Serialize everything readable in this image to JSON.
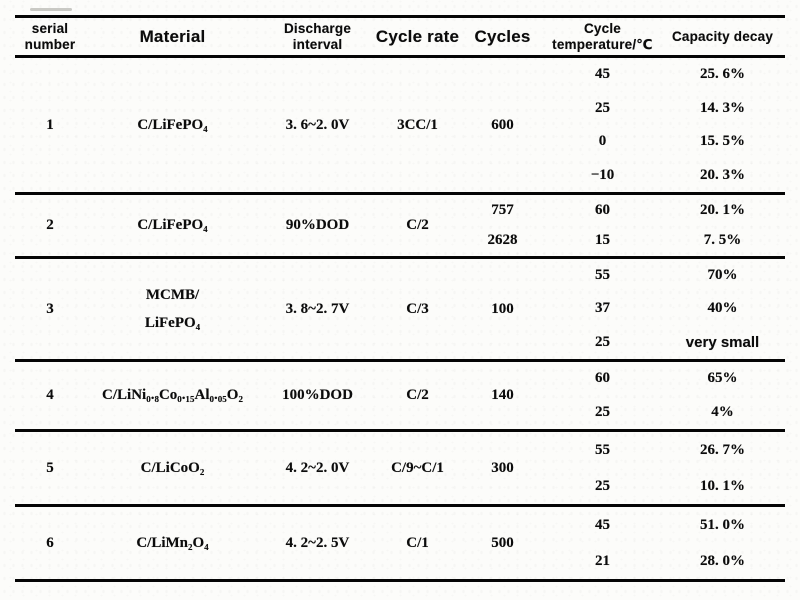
{
  "page": {
    "background": "#fcfcfa",
    "text_color": "#0c0c0c",
    "rule_color": "#050505"
  },
  "chart_data": {
    "type": "table",
    "title": "",
    "columns": [
      "serial number",
      "Material",
      "Discharge interval",
      "Cycle rate",
      "Cycles",
      "Cycle temperature/℃",
      "Capacity decay"
    ]
  },
  "table": {
    "headers": {
      "serial": "serial number",
      "material": "Material",
      "discharge": "Discharge interval",
      "rate": "Cycle rate",
      "cycles": "Cycles",
      "temperature": "Cycle temperature/℃",
      "decay": "Capacity decay"
    },
    "rows": [
      {
        "serial": "1",
        "material": "C/LiFePO₄",
        "discharge": "3. 6~2. 0V",
        "rate": "3CC/1",
        "cycles": [
          "600"
        ],
        "subs": [
          {
            "temp": "45",
            "decay": "25. 6%"
          },
          {
            "temp": "25",
            "decay": "14. 3%"
          },
          {
            "temp": "0",
            "decay": "15. 5%"
          },
          {
            "temp": "−10",
            "decay": "20. 3%"
          }
        ]
      },
      {
        "serial": "2",
        "material": "C/LiFePO₄",
        "discharge": "90%DOD",
        "rate": "C/2",
        "cycles": [
          "757",
          "2628"
        ],
        "subs": [
          {
            "temp": "60",
            "decay": "20. 1%"
          },
          {
            "temp": "15",
            "decay": "7. 5%"
          }
        ]
      },
      {
        "serial": "3",
        "material": "MCMB/\nLiFePO₄",
        "discharge": "3. 8~2. 7V",
        "rate": "C/3",
        "cycles": [
          "100"
        ],
        "subs": [
          {
            "temp": "55",
            "decay": "70%"
          },
          {
            "temp": "37",
            "decay": "40%"
          },
          {
            "temp": "25",
            "decay": "very small"
          }
        ]
      },
      {
        "serial": "4",
        "material": "C/LiNi₀.₈Co₀.₁₅Al₀.₀₅O₂",
        "discharge": "100%DOD",
        "rate": "C/2",
        "cycles": [
          "140"
        ],
        "subs": [
          {
            "temp": "60",
            "decay": "65%"
          },
          {
            "temp": "25",
            "decay": "4%"
          }
        ]
      },
      {
        "serial": "5",
        "material": "C/LiCoO₂",
        "discharge": "4. 2~2. 0V",
        "rate": "C/9~C/1",
        "cycles": [
          "300"
        ],
        "subs": [
          {
            "temp": "55",
            "decay": "26. 7%"
          },
          {
            "temp": "25",
            "decay": "10. 1%"
          }
        ]
      },
      {
        "serial": "6",
        "material": "C/LiMn₂O₄",
        "discharge": "4. 2~2. 5V",
        "rate": "C/1",
        "cycles": [
          "500"
        ],
        "subs": [
          {
            "temp": "45",
            "decay": "51. 0%"
          },
          {
            "temp": "21",
            "decay": "28. 0%"
          }
        ]
      }
    ]
  }
}
